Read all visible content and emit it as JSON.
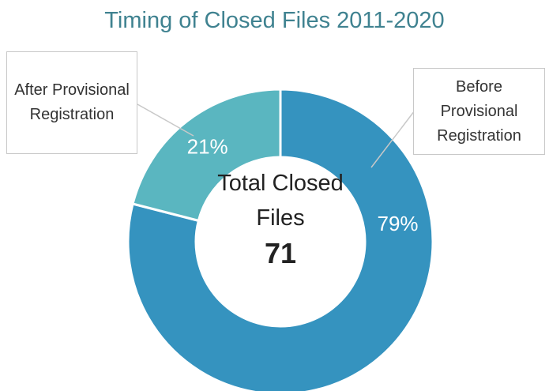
{
  "chart_data": {
    "type": "donut",
    "title": "Timing of Closed Files 2011-2020",
    "categories": [
      "Before Provisional Registration",
      "After Provisional Registration"
    ],
    "values": [
      79,
      21
    ],
    "value_labels": [
      "79%",
      "21%"
    ],
    "colors": [
      "#3593bf",
      "#5ab6c0"
    ],
    "center_label": "Total Closed Files",
    "center_value": 71
  }
}
